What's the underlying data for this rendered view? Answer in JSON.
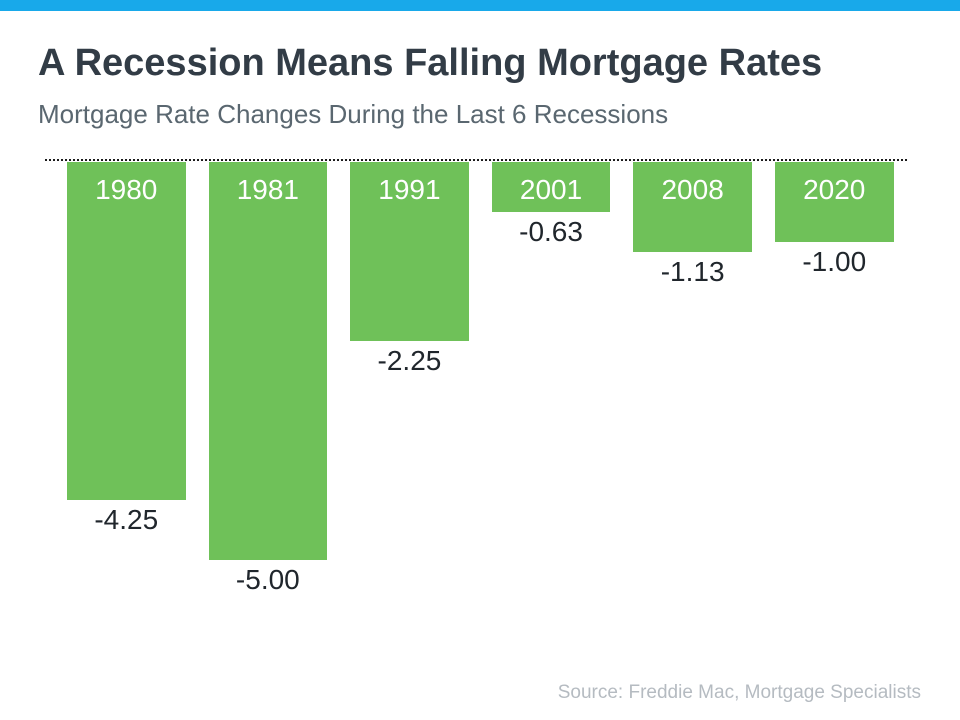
{
  "header": {
    "title": "A Recession Means Falling Mortgage Rates",
    "subtitle": "Mortgage Rate Changes During the Last 6 Recessions"
  },
  "footer": {
    "source": "Source: Freddie Mac, Mortgage Specialists"
  },
  "theme": {
    "accent_blue": "#18a9ea",
    "bar_green": "#6fc159",
    "title_color": "#323c46",
    "subtitle_color": "#5a6770",
    "value_label_color": "#20262c",
    "year_label_color": "#ffffff",
    "baseline_color": "#1b1b1b",
    "source_color": "#b5bbc1"
  },
  "chart_data": {
    "type": "bar",
    "orientation": "vertical",
    "title": "A Recession Means Falling Mortgage Rates",
    "subtitle": "Mortgage Rate Changes During the Last 6 Recessions",
    "categories": [
      "1980",
      "1981",
      "1991",
      "2001",
      "2008",
      "2020"
    ],
    "values": [
      -4.25,
      -5.0,
      -2.25,
      -0.63,
      -1.13,
      -1.0
    ],
    "data_labels": [
      "-4.25",
      "-5.00",
      "-2.25",
      "-0.63",
      "-1.13",
      "-1.00"
    ],
    "bar_color": "#6fc159",
    "baseline": 0,
    "ylim": [
      -5.5,
      0
    ],
    "xlabel": "",
    "ylabel": "",
    "grid": false,
    "legend": false,
    "category_label_position": "inside-top",
    "data_label_position": "below-bar"
  }
}
